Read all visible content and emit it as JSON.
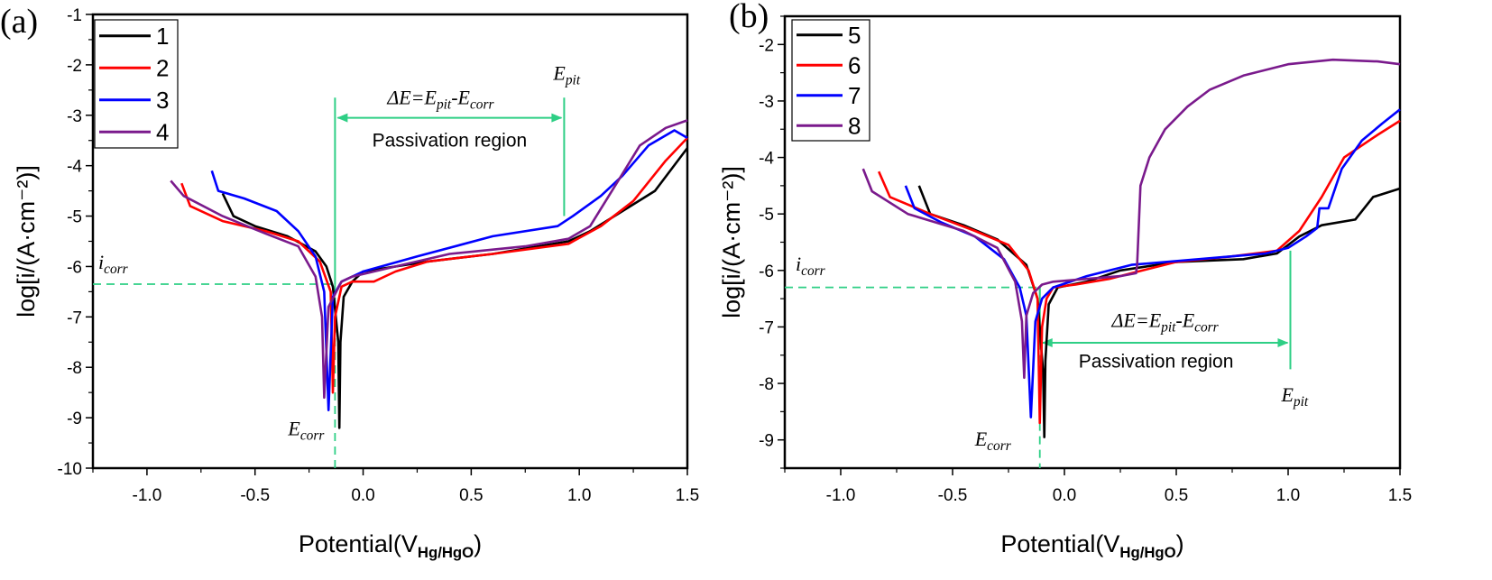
{
  "chart_data": [
    {
      "panel_label": "(a)",
      "type": "line",
      "xlabel": "Potential(V",
      "xlabel_sub": "Hg/HgO",
      "xlabel_end": ")",
      "ylabel": "log[i/(A·cm⁻²)]",
      "xlim": [
        -1.25,
        1.5
      ],
      "ylim": [
        -10,
        -1
      ],
      "xticks": [
        -1.0,
        -0.5,
        0.0,
        0.5,
        1.0,
        1.5
      ],
      "xtick_labels": [
        "-1.0",
        "-0.5",
        "0.0",
        "0.5",
        "1.0",
        "1.5"
      ],
      "yticks": [
        -1,
        -2,
        -3,
        -4,
        -5,
        -6,
        -7,
        -8,
        -9,
        -10
      ],
      "ytick_labels": [
        "-1",
        "-2",
        "-3",
        "-4",
        "-5",
        "-6",
        "-7",
        "-8",
        "-9",
        "-10"
      ],
      "grid": false,
      "legend_position": "top-left",
      "annotation_color": "#2ecf85",
      "annotations": {
        "delta_e": [
          "ΔE=E",
          "pit",
          "-E",
          "corr"
        ],
        "passivation": "Passivation region",
        "e_pit": [
          "E",
          "pit"
        ],
        "i_corr": [
          "i",
          "corr"
        ],
        "e_corr": [
          "E",
          "corr"
        ],
        "e_corr_value": -0.13,
        "i_corr_value": -6.35,
        "e_pit_value": 0.93
      },
      "series": [
        {
          "name": "1",
          "color": "#000000",
          "x": [
            -0.65,
            -0.6,
            -0.5,
            -0.35,
            -0.22,
            -0.17,
            -0.14,
            -0.115,
            -0.11,
            -0.105,
            -0.09,
            -0.05,
            0.0,
            0.3,
            0.6,
            0.95,
            1.05,
            1.2,
            1.35,
            1.5
          ],
          "y": [
            -4.55,
            -5.0,
            -5.2,
            -5.4,
            -5.7,
            -6.0,
            -6.4,
            -7.5,
            -9.2,
            -7.5,
            -6.6,
            -6.3,
            -6.1,
            -5.9,
            -5.75,
            -5.5,
            -5.3,
            -4.9,
            -4.5,
            -3.65
          ]
        },
        {
          "name": "2",
          "color": "#ff0000",
          "x": [
            -0.84,
            -0.8,
            -0.65,
            -0.45,
            -0.3,
            -0.2,
            -0.15,
            -0.14,
            -0.13,
            -0.1,
            -0.05,
            0.05,
            0.15,
            0.3,
            0.6,
            0.95,
            1.1,
            1.25,
            1.4,
            1.5
          ],
          "y": [
            -4.35,
            -4.8,
            -5.1,
            -5.3,
            -5.5,
            -5.9,
            -6.5,
            -8.5,
            -7.0,
            -6.4,
            -6.3,
            -6.3,
            -6.1,
            -5.9,
            -5.75,
            -5.55,
            -5.2,
            -4.7,
            -3.9,
            -3.45
          ]
        },
        {
          "name": "3",
          "color": "#0000ff",
          "x": [
            -0.7,
            -0.67,
            -0.55,
            -0.4,
            -0.3,
            -0.22,
            -0.18,
            -0.16,
            -0.14,
            -0.1,
            0.0,
            0.25,
            0.6,
            0.9,
            0.97,
            1.1,
            1.2,
            1.32,
            1.44,
            1.5
          ],
          "y": [
            -4.1,
            -4.5,
            -4.65,
            -4.9,
            -5.3,
            -5.8,
            -6.5,
            -8.85,
            -6.6,
            -6.3,
            -6.1,
            -5.8,
            -5.4,
            -5.2,
            -5.0,
            -4.6,
            -4.2,
            -3.6,
            -3.3,
            -3.45
          ]
        },
        {
          "name": "4",
          "color": "#7a1a8c",
          "x": [
            -0.89,
            -0.83,
            -0.65,
            -0.45,
            -0.3,
            -0.22,
            -0.19,
            -0.18,
            -0.16,
            -0.1,
            -0.05,
            0.15,
            0.4,
            0.75,
            0.95,
            1.05,
            1.18,
            1.28,
            1.4,
            1.5
          ],
          "y": [
            -4.3,
            -4.6,
            -5.0,
            -5.35,
            -5.6,
            -6.2,
            -7.0,
            -8.6,
            -6.8,
            -6.3,
            -6.2,
            -6.0,
            -5.75,
            -5.6,
            -5.45,
            -5.2,
            -4.3,
            -3.6,
            -3.25,
            -3.1
          ]
        }
      ]
    },
    {
      "panel_label": "(b)",
      "type": "line",
      "xlabel": "Potential(V",
      "xlabel_sub": "Hg/HgO",
      "xlabel_end": ")",
      "ylabel": "log[i/(A·cm⁻²)]",
      "xlim": [
        -1.25,
        1.5
      ],
      "ylim": [
        -9.5,
        -1.5
      ],
      "xticks": [
        -1.0,
        -0.5,
        0.0,
        0.5,
        1.0,
        1.5
      ],
      "xtick_labels": [
        "-1.0",
        "-0.5",
        "0.0",
        "0.5",
        "1.0",
        "1.5"
      ],
      "yticks": [
        -2,
        -3,
        -4,
        -5,
        -6,
        -7,
        -8,
        -9
      ],
      "ytick_labels": [
        "-2",
        "-3",
        "-4",
        "-5",
        "-6",
        "-7",
        "-8",
        "-9"
      ],
      "grid": false,
      "legend_position": "top-left",
      "annotation_color": "#2ecf85",
      "annotations": {
        "delta_e": [
          "ΔE=E",
          "pit",
          "-E",
          "corr"
        ],
        "passivation": "Passivation region",
        "e_pit": [
          "E",
          "pit"
        ],
        "i_corr": [
          "i",
          "corr"
        ],
        "e_corr": [
          "E",
          "corr"
        ],
        "e_corr_value": -0.11,
        "i_corr_value": -6.3,
        "e_pit_value": 1.01
      },
      "series": [
        {
          "name": "5",
          "color": "#000000",
          "x": [
            -0.65,
            -0.6,
            -0.45,
            -0.3,
            -0.17,
            -0.12,
            -0.095,
            -0.09,
            -0.085,
            -0.07,
            -0.03,
            0.1,
            0.25,
            0.5,
            0.8,
            0.95,
            1.05,
            1.15,
            1.3,
            1.38,
            1.5
          ],
          "y": [
            -4.5,
            -5.0,
            -5.2,
            -5.45,
            -5.9,
            -6.5,
            -7.8,
            -8.95,
            -7.6,
            -6.6,
            -6.3,
            -6.2,
            -6.0,
            -5.85,
            -5.8,
            -5.7,
            -5.4,
            -5.2,
            -5.1,
            -4.7,
            -4.55
          ]
        },
        {
          "name": "6",
          "color": "#ff0000",
          "x": [
            -0.83,
            -0.78,
            -0.6,
            -0.4,
            -0.25,
            -0.16,
            -0.12,
            -0.11,
            -0.1,
            -0.08,
            -0.05,
            0.05,
            0.2,
            0.3,
            0.5,
            0.75,
            0.95,
            1.05,
            1.15,
            1.25,
            1.4,
            1.5
          ],
          "y": [
            -4.25,
            -4.7,
            -5.0,
            -5.3,
            -5.55,
            -6.0,
            -6.5,
            -8.7,
            -7.0,
            -6.5,
            -6.3,
            -6.25,
            -6.15,
            -6.05,
            -5.85,
            -5.75,
            -5.65,
            -5.3,
            -4.7,
            -4.0,
            -3.6,
            -3.35
          ]
        },
        {
          "name": "7",
          "color": "#0000ff",
          "x": [
            -0.71,
            -0.67,
            -0.55,
            -0.4,
            -0.27,
            -0.2,
            -0.17,
            -0.15,
            -0.13,
            -0.1,
            -0.05,
            0.1,
            0.3,
            0.6,
            0.9,
            1.0,
            1.08,
            1.13,
            1.14,
            1.18,
            1.24,
            1.33,
            1.42,
            1.5
          ],
          "y": [
            -4.5,
            -4.9,
            -5.15,
            -5.4,
            -5.8,
            -6.3,
            -6.8,
            -8.6,
            -6.9,
            -6.5,
            -6.3,
            -6.1,
            -5.9,
            -5.8,
            -5.7,
            -5.6,
            -5.4,
            -5.25,
            -4.9,
            -4.9,
            -4.2,
            -3.7,
            -3.4,
            -3.15
          ]
        },
        {
          "name": "8",
          "color": "#7a1a8c",
          "x": [
            -0.9,
            -0.86,
            -0.7,
            -0.45,
            -0.3,
            -0.22,
            -0.19,
            -0.18,
            -0.17,
            -0.14,
            -0.1,
            -0.05,
            0.1,
            0.25,
            0.32,
            0.325,
            0.34,
            0.38,
            0.45,
            0.55,
            0.65,
            0.8,
            1.0,
            1.2,
            1.4,
            1.5
          ],
          "y": [
            -4.2,
            -4.6,
            -5.0,
            -5.3,
            -5.6,
            -6.2,
            -6.9,
            -7.9,
            -6.8,
            -6.4,
            -6.25,
            -6.2,
            -6.15,
            -6.1,
            -6.05,
            -5.9,
            -4.5,
            -4.0,
            -3.5,
            -3.1,
            -2.8,
            -2.55,
            -2.35,
            -2.27,
            -2.3,
            -2.35
          ]
        }
      ]
    }
  ]
}
